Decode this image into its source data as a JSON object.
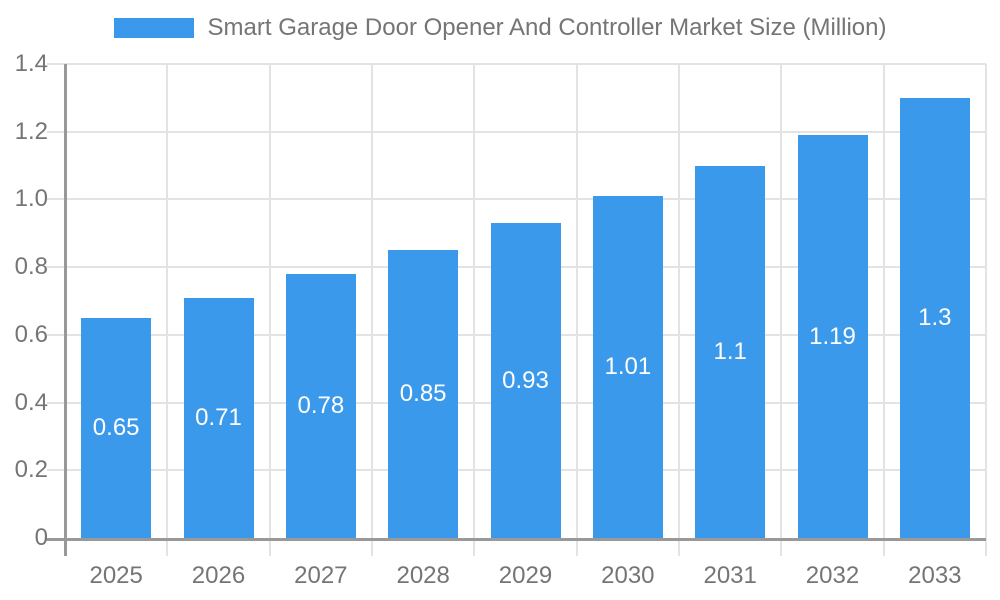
{
  "chart_data": {
    "type": "bar",
    "title": "Smart Garage Door Opener And Controller Market Size (Million)",
    "legend_position": "top",
    "categories": [
      "2025",
      "2026",
      "2027",
      "2028",
      "2029",
      "2030",
      "2031",
      "2032",
      "2033"
    ],
    "values": [
      0.65,
      0.71,
      0.78,
      0.85,
      0.93,
      1.01,
      1.1,
      1.19,
      1.3
    ],
    "value_labels": [
      "0.65",
      "0.71",
      "0.78",
      "0.85",
      "0.93",
      "1.01",
      "1.1",
      "1.19",
      "1.3"
    ],
    "xlabel": "",
    "ylabel": "",
    "ylim": [
      0,
      1.4
    ],
    "y_tick_labels": [
      "0",
      "0.2",
      "0.4",
      "0.6",
      "0.8",
      "1.0",
      "1.2",
      "1.4"
    ],
    "grid": true,
    "colors": {
      "bar": "#3B99EC",
      "grid": "#E3E3E3",
      "axis": "#999999",
      "label_text": "#757575",
      "value_text": "#FFFFFF",
      "background": "#FFFFFF"
    }
  }
}
